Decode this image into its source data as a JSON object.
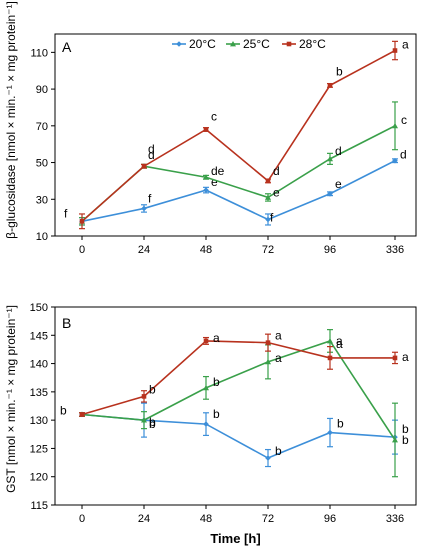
{
  "chart_data": [
    {
      "type": "line",
      "panel_label": "A",
      "ylabel": "β-glucosidase [nmol × min.⁻¹ × mg protein⁻¹]",
      "xlabel": "",
      "categories": [
        "0",
        "24",
        "48",
        "72",
        "96",
        "336"
      ],
      "ylim": [
        10,
        120
      ],
      "yticks": [
        10,
        30,
        50,
        70,
        90,
        110
      ],
      "grid": false,
      "legend_position": "top-center",
      "series": [
        {
          "name": "20°C",
          "color": "#3d8fd9",
          "marker": "diamond",
          "values": [
            18,
            25,
            35,
            19,
            33,
            51
          ],
          "errors": [
            2,
            2,
            1.5,
            3,
            1,
            1
          ],
          "letters": [
            "f",
            "f",
            "e",
            "f",
            "e",
            "d"
          ]
        },
        {
          "name": "25°C",
          "color": "#3aa04a",
          "marker": "triangle",
          "values": [
            18,
            48,
            42,
            31,
            52,
            70
          ],
          "errors": [
            2,
            1,
            1,
            2,
            3,
            13
          ],
          "letters": [
            "",
            "d",
            "de",
            "e",
            "d",
            "c"
          ]
        },
        {
          "name": "28°C",
          "color": "#b8321e",
          "marker": "square",
          "values": [
            18,
            48,
            68,
            40,
            92,
            111
          ],
          "errors": [
            4,
            1,
            1,
            1,
            1,
            5
          ],
          "letters": [
            "",
            "d",
            "c",
            "d",
            "b",
            "a"
          ]
        }
      ]
    },
    {
      "type": "line",
      "panel_label": "B",
      "ylabel": "GST [nmol × min.⁻¹ × mg protein⁻¹]",
      "xlabel": "Time [h]",
      "categories": [
        "0",
        "24",
        "48",
        "72",
        "96",
        "336"
      ],
      "ylim": [
        115,
        150
      ],
      "yticks": [
        115,
        120,
        125,
        130,
        135,
        140,
        145,
        150
      ],
      "grid": false,
      "series": [
        {
          "name": "20°C",
          "color": "#3d8fd9",
          "marker": "diamond",
          "values": [
            131,
            130,
            129.3,
            123.3,
            127.8,
            127
          ],
          "errors": [
            0.3,
            3,
            2,
            1.5,
            2.5,
            3
          ],
          "letters": [
            "b",
            "b",
            "b",
            "b",
            "b",
            "b"
          ]
        },
        {
          "name": "25°C",
          "color": "#3aa04a",
          "marker": "triangle",
          "values": [
            131,
            130,
            135.7,
            140.3,
            144,
            126.5
          ],
          "errors": [
            0.3,
            1.5,
            2,
            3,
            2,
            6.5
          ],
          "letters": [
            "",
            "b",
            "b",
            "a",
            "a",
            "b"
          ]
        },
        {
          "name": "28°C",
          "color": "#b8321e",
          "marker": "square",
          "values": [
            131,
            134.2,
            144,
            143.7,
            141,
            141
          ],
          "errors": [
            0.3,
            1,
            0.6,
            1.5,
            2,
            1
          ],
          "letters": [
            "",
            "b",
            "a",
            "a",
            "a",
            "a"
          ]
        }
      ]
    }
  ]
}
